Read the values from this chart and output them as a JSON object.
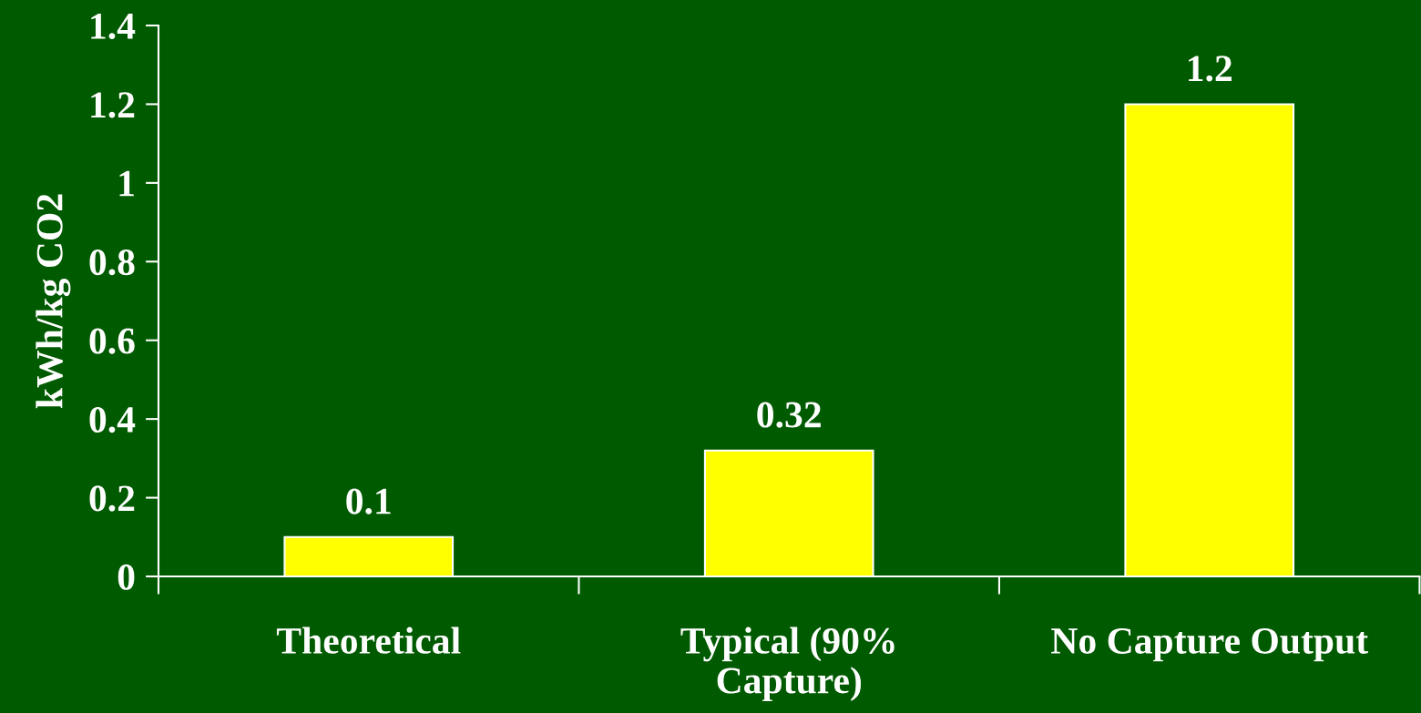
{
  "chart_data": {
    "type": "bar",
    "ylabel": "kWh/kg CO2",
    "categories": [
      "Theoretical",
      "Typical (90%\nCapture)",
      "No Capture Output"
    ],
    "values": [
      0.1,
      0.32,
      1.2
    ],
    "color": "#ffff00",
    "ylim": [
      0,
      1.4
    ],
    "yticks": [
      0,
      0.2,
      0.4,
      0.6,
      0.8,
      1,
      1.2,
      1.4
    ],
    "data_labels": true,
    "grid": false,
    "legend": false
  }
}
